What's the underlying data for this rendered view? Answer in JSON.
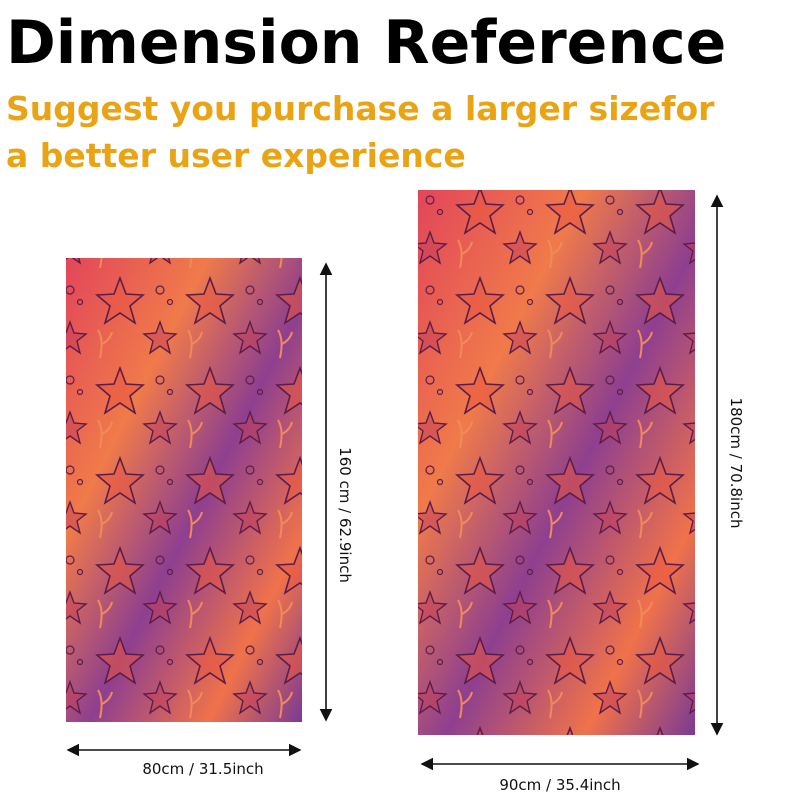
{
  "header": {
    "title": "Dimension Reference",
    "subtitle_lines": [
      "Suggest you purchase a larger sizefor",
      "a better user experience"
    ]
  },
  "towels": [
    {
      "height_label": "160 cm / 62.9inch",
      "width_label": "80cm / 31.5inch"
    },
    {
      "height_label": "180cm / 70.8inch",
      "width_label": "90cm / 35.4inch"
    }
  ]
}
